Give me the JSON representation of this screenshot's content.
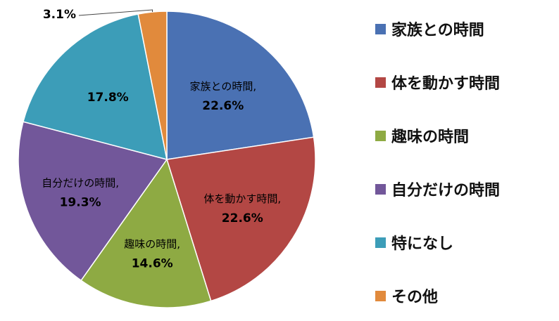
{
  "chart_data": {
    "type": "pie",
    "title": "",
    "categories": [
      "家族との時間",
      "体を動かす時間",
      "趣味の時間",
      "自分だけの時間",
      "特になし",
      "その他"
    ],
    "values": [
      22.6,
      22.6,
      14.6,
      19.3,
      17.8,
      3.1
    ],
    "value_labels": [
      "22.6%",
      "22.6%",
      "14.6%",
      "19.3%",
      "17.8%",
      "3.1%"
    ],
    "slice_labels": [
      "家族との時間,",
      "体を動かす時間,",
      "趣味の時間,",
      "自分だけの時間,",
      "",
      ""
    ],
    "colors": [
      "#4a71b3",
      "#b34744",
      "#8eaa43",
      "#72579a",
      "#3c9db8",
      "#e18a3c"
    ],
    "legend": {
      "placement": "right",
      "items": [
        {
          "label": "家族との時間",
          "icon": "square-swatch"
        },
        {
          "label": "体を動かす時間",
          "icon": "square-swatch"
        },
        {
          "label": "趣味の時間",
          "icon": "square-swatch"
        },
        {
          "label": "自分だけの時間",
          "icon": "square-swatch"
        },
        {
          "label": "特になし",
          "icon": "square-swatch"
        },
        {
          "label": "その他",
          "icon": "square-swatch"
        }
      ]
    },
    "start_angle_deg": 0,
    "direction": "clockwise"
  }
}
